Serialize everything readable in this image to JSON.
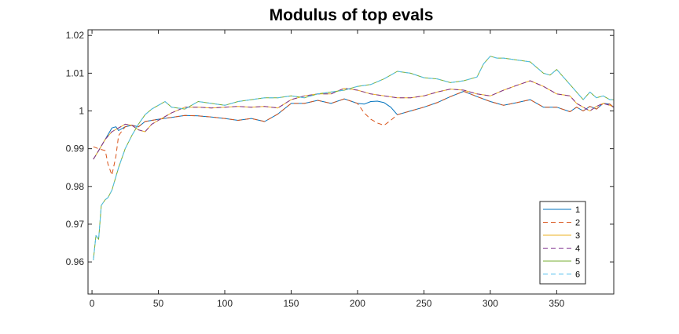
{
  "chart_data": {
    "type": "line",
    "title": "Modulus of top evals",
    "xlabel": "",
    "ylabel": "",
    "xlim": [
      -3,
      393
    ],
    "ylim": [
      0.9515,
      1.0215
    ],
    "xticks": [
      0,
      50,
      100,
      150,
      200,
      250,
      300,
      350
    ],
    "yticks": [
      0.96,
      0.97,
      0.98,
      0.99,
      1.0,
      1.01,
      1.02
    ],
    "ytick_labels": [
      "0.96",
      "0.97",
      "0.98",
      "0.99",
      "1",
      "1.01",
      "1.02"
    ],
    "grid": false,
    "legend_position": "bottom-right",
    "series": [
      {
        "name": "1",
        "color": "#0072BD",
        "dash": "solid",
        "x": [
          1,
          5,
          10,
          15,
          18,
          20,
          25,
          30,
          35,
          40,
          50,
          60,
          70,
          80,
          90,
          100,
          110,
          120,
          130,
          140,
          150,
          160,
          170,
          180,
          190,
          200,
          205,
          210,
          215,
          220,
          225,
          230,
          240,
          250,
          260,
          270,
          280,
          290,
          300,
          310,
          320,
          330,
          340,
          350,
          360,
          365,
          370,
          375,
          380,
          385,
          390,
          393
        ],
        "y": [
          0.9872,
          0.9895,
          0.9925,
          0.9955,
          0.9958,
          0.9948,
          0.9958,
          0.9962,
          0.9958,
          0.9972,
          0.9978,
          0.9983,
          0.9988,
          0.9987,
          0.9984,
          0.998,
          0.9975,
          0.998,
          0.9972,
          0.9992,
          1.002,
          1.002,
          1.0028,
          1.002,
          1.0032,
          1.002,
          1.0018,
          1.0025,
          1.0026,
          1.0022,
          1.001,
          0.999,
          1.0,
          1.001,
          1.0022,
          1.0038,
          1.0052,
          1.0038,
          1.0025,
          1.0015,
          1.0022,
          1.003,
          1.001,
          1.001,
          0.9998,
          1.001,
          1.0,
          1.0012,
          1.0005,
          1.002,
          1.0018,
          1.001
        ]
      },
      {
        "name": "2",
        "color": "#D95319",
        "dash": "dashed",
        "x": [
          1,
          5,
          10,
          12,
          15,
          18,
          20,
          25,
          30,
          35,
          40,
          50,
          60,
          70,
          80,
          90,
          100,
          110,
          120,
          130,
          140,
          150,
          160,
          170,
          180,
          190,
          200,
          205,
          210,
          215,
          220,
          225,
          230,
          240,
          250,
          260,
          270,
          280,
          290,
          300,
          310,
          320,
          330,
          340,
          350,
          360,
          365,
          370,
          375,
          380,
          385,
          390,
          393
        ],
        "y": [
          0.9905,
          0.99,
          0.9895,
          0.986,
          0.983,
          0.988,
          0.9935,
          0.9958,
          0.9962,
          0.9958,
          0.9972,
          0.9978,
          0.9983,
          0.9988,
          0.9987,
          0.9984,
          0.998,
          0.9975,
          0.998,
          0.9972,
          0.9992,
          1.002,
          1.002,
          1.0028,
          1.002,
          1.0032,
          1.002,
          0.9995,
          0.9978,
          0.9968,
          0.9962,
          0.9975,
          0.999,
          1.0,
          1.001,
          1.0022,
          1.0038,
          1.0052,
          1.0038,
          1.0025,
          1.0015,
          1.0022,
          1.003,
          1.001,
          1.001,
          0.9998,
          1.001,
          1.0,
          1.0012,
          1.0005,
          1.002,
          1.0018,
          1.001
        ]
      },
      {
        "name": "3",
        "color": "#EDB120",
        "dash": "solid",
        "x": [
          1,
          5,
          10,
          15,
          20,
          25,
          30,
          35,
          40,
          45,
          50,
          55,
          60,
          70,
          80,
          90,
          100,
          110,
          120,
          130,
          140,
          150,
          160,
          170,
          180,
          190,
          200,
          210,
          220,
          230,
          240,
          250,
          260,
          270,
          280,
          290,
          300,
          310,
          320,
          330,
          340,
          350,
          360,
          365,
          370,
          375,
          380,
          385,
          390,
          393
        ],
        "y": [
          0.9872,
          0.9895,
          0.9925,
          0.9945,
          0.9955,
          0.9965,
          0.9962,
          0.995,
          0.9945,
          0.9965,
          0.9975,
          0.9985,
          0.9995,
          1.001,
          1.001,
          1.0008,
          1.001,
          1.0012,
          1.001,
          1.0012,
          1.0008,
          1.003,
          1.004,
          1.0045,
          1.0045,
          1.006,
          1.0055,
          1.0045,
          1.004,
          1.0035,
          1.0035,
          1.004,
          1.005,
          1.0058,
          1.0055,
          1.0045,
          1.004,
          1.0055,
          1.0068,
          1.008,
          1.0065,
          1.0045,
          1.004,
          1.002,
          1.001,
          1.0,
          1.0012,
          1.002,
          1.0015,
          1.001
        ]
      },
      {
        "name": "4",
        "color": "#7E2F8E",
        "dash": "dashed",
        "x": [
          1,
          5,
          10,
          15,
          20,
          25,
          30,
          35,
          40,
          45,
          50,
          55,
          60,
          70,
          80,
          90,
          100,
          110,
          120,
          130,
          140,
          150,
          160,
          170,
          180,
          190,
          200,
          210,
          220,
          230,
          240,
          250,
          260,
          270,
          280,
          290,
          300,
          310,
          320,
          330,
          340,
          350,
          360,
          365,
          370,
          375,
          380,
          385,
          390,
          393
        ],
        "y": [
          0.9872,
          0.9895,
          0.9925,
          0.9945,
          0.9955,
          0.9965,
          0.9962,
          0.995,
          0.9945,
          0.9965,
          0.9975,
          0.9985,
          0.9995,
          1.001,
          1.001,
          1.0008,
          1.001,
          1.0012,
          1.001,
          1.0012,
          1.0008,
          1.003,
          1.004,
          1.0045,
          1.0045,
          1.006,
          1.0055,
          1.0045,
          1.004,
          1.0035,
          1.0035,
          1.004,
          1.005,
          1.0058,
          1.0055,
          1.0045,
          1.004,
          1.0055,
          1.0068,
          1.008,
          1.0065,
          1.0045,
          1.004,
          1.002,
          1.001,
          1.0,
          1.0012,
          1.002,
          1.0015,
          1.001
        ]
      },
      {
        "name": "5",
        "color": "#77AC30",
        "dash": "solid",
        "x": [
          1,
          3,
          5,
          7,
          10,
          12,
          15,
          20,
          25,
          30,
          35,
          40,
          45,
          50,
          55,
          60,
          70,
          80,
          90,
          100,
          110,
          120,
          130,
          140,
          150,
          160,
          170,
          180,
          190,
          200,
          210,
          220,
          230,
          240,
          250,
          260,
          270,
          280,
          290,
          295,
          300,
          305,
          310,
          320,
          330,
          340,
          345,
          350,
          355,
          360,
          365,
          370,
          375,
          380,
          385,
          390,
          393
        ],
        "y": [
          0.9605,
          0.967,
          0.966,
          0.975,
          0.9765,
          0.977,
          0.979,
          0.985,
          0.99,
          0.9935,
          0.9965,
          0.999,
          1.0005,
          1.0015,
          1.0025,
          1.001,
          1.0005,
          1.0025,
          1.002,
          1.0015,
          1.0025,
          1.003,
          1.0035,
          1.0035,
          1.004,
          1.0035,
          1.0045,
          1.005,
          1.0055,
          1.0065,
          1.007,
          1.0085,
          1.0105,
          1.01,
          1.0088,
          1.0085,
          1.0075,
          1.008,
          1.009,
          1.0125,
          1.0145,
          1.014,
          1.014,
          1.0135,
          1.013,
          1.01,
          1.0095,
          1.011,
          1.009,
          1.007,
          1.005,
          1.003,
          1.005,
          1.0035,
          1.004,
          1.003,
          1.003
        ]
      },
      {
        "name": "6",
        "color": "#4DBEEE",
        "dash": "dashed",
        "x": [
          1,
          3,
          5,
          7,
          10,
          12,
          15,
          20,
          25,
          30,
          35,
          40,
          45,
          50,
          55,
          60,
          70,
          80,
          90,
          100,
          110,
          120,
          130,
          140,
          150,
          160,
          170,
          180,
          190,
          200,
          210,
          220,
          230,
          240,
          250,
          260,
          270,
          280,
          290,
          295,
          300,
          305,
          310,
          320,
          330,
          340,
          345,
          350,
          355,
          360,
          365,
          370,
          375,
          380,
          385,
          390,
          393
        ],
        "y": [
          0.9605,
          0.967,
          0.966,
          0.975,
          0.9765,
          0.977,
          0.979,
          0.985,
          0.99,
          0.9935,
          0.9965,
          0.999,
          1.0005,
          1.0015,
          1.0025,
          1.001,
          1.0005,
          1.0025,
          1.002,
          1.0015,
          1.0025,
          1.003,
          1.0035,
          1.0035,
          1.004,
          1.0035,
          1.0045,
          1.005,
          1.0055,
          1.0065,
          1.007,
          1.0085,
          1.0105,
          1.01,
          1.0088,
          1.0085,
          1.0075,
          1.008,
          1.009,
          1.0125,
          1.0145,
          1.014,
          1.014,
          1.0135,
          1.013,
          1.01,
          1.0095,
          1.011,
          1.009,
          1.007,
          1.005,
          1.003,
          1.005,
          1.0035,
          1.004,
          1.003,
          1.003
        ]
      }
    ]
  }
}
